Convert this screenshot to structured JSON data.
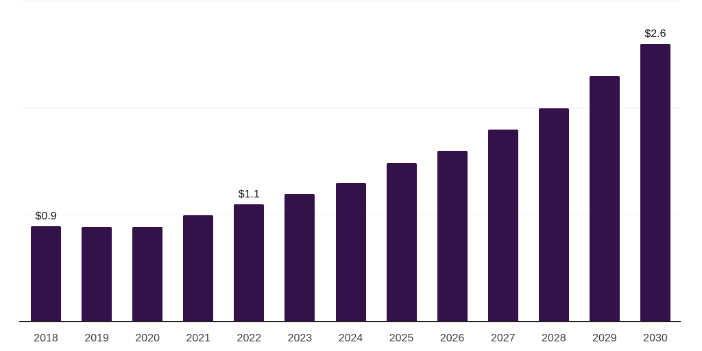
{
  "chart_data": {
    "type": "bar",
    "title": "",
    "xlabel": "",
    "ylabel": "",
    "categories": [
      "2018",
      "2019",
      "2020",
      "2021",
      "2022",
      "2023",
      "2024",
      "2025",
      "2026",
      "2027",
      "2028",
      "2029",
      "2030"
    ],
    "values": [
      0.9,
      0.89,
      0.89,
      1.0,
      1.1,
      1.2,
      1.3,
      1.49,
      1.6,
      1.8,
      2.0,
      2.3,
      2.6
    ],
    "bar_labels": [
      "$0.9",
      "",
      "",
      "",
      "$1.1",
      "",
      "",
      "",
      "",
      "",
      "",
      "",
      "$2.6"
    ],
    "ylim": [
      0,
      3
    ],
    "gridline_values": [
      1,
      2,
      3
    ],
    "grid": "horizontal-faint",
    "legend": "none"
  },
  "colors": {
    "background": "#ffffff",
    "bar": "#331149",
    "axis_line": "#1f1f1f",
    "gridline": "#f1eff2",
    "year_label": "#3d3d3d",
    "data_label": "#121212"
  }
}
